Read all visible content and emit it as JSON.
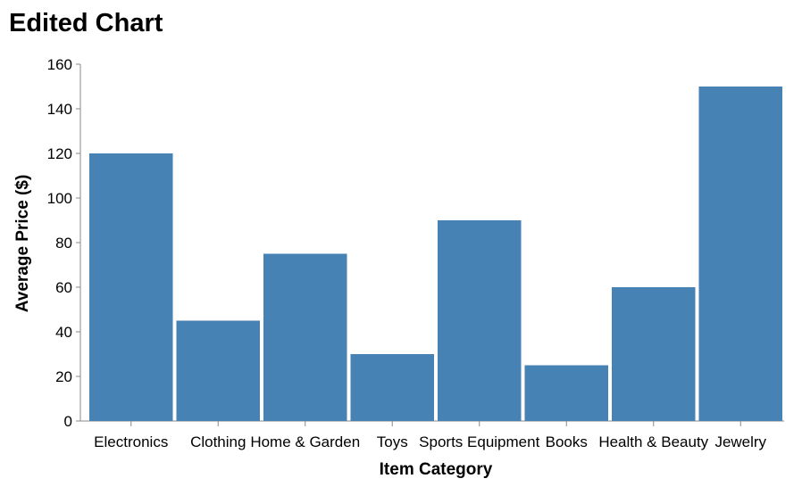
{
  "chart_data": {
    "type": "bar",
    "title": "Edited Chart",
    "xlabel": "Item Category",
    "ylabel": "Average Price ($)",
    "categories": [
      "Electronics",
      "Clothing",
      "Home & Garden",
      "Toys",
      "Sports Equipment",
      "Books",
      "Health & Beauty",
      "Jewelry"
    ],
    "values": [
      120,
      45,
      75,
      30,
      90,
      25,
      60,
      150
    ],
    "ylim": [
      0,
      160
    ],
    "yticks": [
      0,
      20,
      40,
      60,
      80,
      100,
      120,
      140,
      160
    ],
    "grid": false,
    "bar_color": "#4682b4"
  }
}
